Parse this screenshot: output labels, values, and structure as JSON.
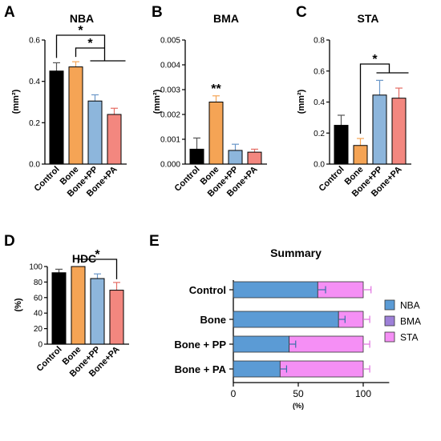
{
  "colors": {
    "Control": "#000000",
    "Bone": "#F5A455",
    "Bone+PP": "#8DB6DC",
    "Bone+PA": "#F3877F",
    "NBA": "#5B9BD5",
    "BMA": "#9E80D8",
    "STA": "#F58FF5",
    "control_err": "#555555",
    "bone_err": "#F5A455",
    "pp_err": "#6A97C8",
    "pa_err": "#E56C64",
    "sum_err": "#E070E0"
  },
  "chart_data": [
    {
      "id": "A",
      "type": "bar",
      "panel_label": "A",
      "title": "NBA",
      "ylabel": "(mm²)",
      "categories": [
        "Control",
        "Bone",
        "Bone+PP",
        "Bone+PA"
      ],
      "values": [
        0.45,
        0.47,
        0.305,
        0.24
      ],
      "errors": [
        0.04,
        0.025,
        0.03,
        0.03
      ],
      "ylim": [
        0,
        0.6
      ],
      "yticks": [
        "0.0",
        "0.2",
        "0.4",
        "0.6"
      ],
      "annotations": [
        "*",
        "*"
      ]
    },
    {
      "id": "B",
      "type": "bar",
      "panel_label": "B",
      "title": "BMA",
      "ylabel": "(mm²)",
      "categories": [
        "Control",
        "Bone",
        "Bone+PP",
        "Bone+PA"
      ],
      "values": [
        0.0006,
        0.0025,
        0.00055,
        0.00048
      ],
      "errors": [
        0.00045,
        0.00025,
        0.00025,
        0.00012
      ],
      "ylim": [
        0,
        0.005
      ],
      "yticks": [
        "0.000",
        "0.001",
        "0.002",
        "0.003",
        "0.004",
        "0.005"
      ],
      "annotations": [
        "**"
      ]
    },
    {
      "id": "C",
      "type": "bar",
      "panel_label": "C",
      "title": "STA",
      "ylabel": "(mm²)",
      "categories": [
        "Control",
        "Bone",
        "Bone+PP",
        "Bone+PA"
      ],
      "values": [
        0.25,
        0.12,
        0.445,
        0.425
      ],
      "errors": [
        0.065,
        0.045,
        0.095,
        0.065
      ],
      "ylim": [
        0,
        0.8
      ],
      "yticks": [
        "0.0",
        "0.2",
        "0.4",
        "0.6",
        "0.8"
      ],
      "annotations": [
        "*"
      ]
    },
    {
      "id": "D",
      "type": "bar",
      "panel_label": "D",
      "title": "HDC",
      "ylabel": "(%)",
      "categories": [
        "Control",
        "Bone",
        "Bone+PP",
        "Bone+PA"
      ],
      "values": [
        92,
        100,
        84.5,
        69.5
      ],
      "errors": [
        4.5,
        0,
        6,
        10
      ],
      "ylim": [
        0,
        100
      ],
      "yticks": [
        "0",
        "20",
        "40",
        "60",
        "80",
        "100"
      ],
      "annotations": [
        "*"
      ]
    },
    {
      "id": "E",
      "type": "bar",
      "orientation": "horizontal-stacked",
      "panel_label": "E",
      "title": "Summary",
      "xlabel": "(%)",
      "categories": [
        "Control",
        "Bone",
        "Bone + PP",
        "Bone + PA"
      ],
      "series": [
        {
          "name": "NBA",
          "values": [
            65,
            81,
            43,
            36
          ]
        },
        {
          "name": "BMA",
          "values": [
            0,
            0,
            0,
            0
          ]
        },
        {
          "name": "STA",
          "values": [
            35,
            19,
            57,
            64
          ]
        }
      ],
      "errors": [
        6,
        5,
        5,
        5
      ],
      "xlim": [
        0,
        120
      ],
      "xticks": [
        "0",
        "50",
        "100"
      ],
      "legend": "right"
    }
  ]
}
